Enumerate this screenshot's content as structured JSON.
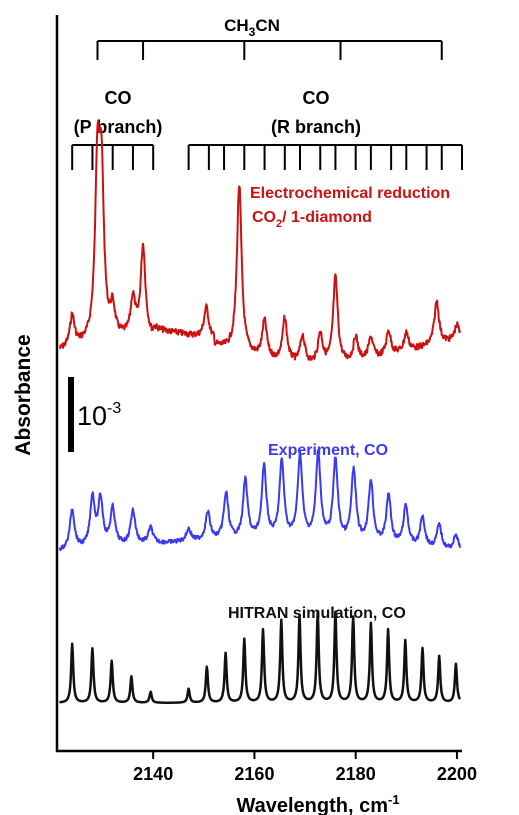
{
  "chart_data": {
    "type": "line",
    "title": "",
    "xlabel": "Wavelength",
    "xlabel_unit": "cm",
    "xlabel_unit_sup": "-1",
    "ylabel": "Absorbance",
    "xlim": [
      2121,
      2201
    ],
    "xticks": [
      2140,
      2160,
      2180,
      2200
    ],
    "x_tick_labels": [
      "2140",
      "2160",
      "2180",
      "2200"
    ],
    "scale_bar": {
      "base": "10",
      "exponent": "-3"
    },
    "annotations": {
      "ch3cn": {
        "label": "CH3CN",
        "label_main": "CH",
        "label_sub": "3",
        "label_rest": "CN",
        "lines": [
          2129,
          2138,
          2158,
          2177,
          2197
        ]
      },
      "co_p": {
        "label_top": "CO",
        "label_bottom": "(P branch)",
        "lines": [
          2124,
          2128,
          2132,
          2136,
          2140
        ]
      },
      "co_r": {
        "label_top": "CO",
        "label_bottom": "(R branch)",
        "lines": [
          2147,
          2151,
          2154,
          2158,
          2162,
          2166,
          2169,
          2173,
          2176,
          2180,
          2183,
          2187,
          2190,
          2194,
          2197,
          2201
        ]
      }
    },
    "series": [
      {
        "label_line1": "Electrochemical reduction",
        "label_line2_main": "CO",
        "label_line2_sub": "2",
        "label_line2_rest": "/ 1-diamond",
        "color": "#cc1111",
        "peaks": [
          {
            "x": 2124.0,
            "h": 1.0
          },
          {
            "x": 2129.0,
            "h": 5.5
          },
          {
            "x": 2129.8,
            "h": 4.8
          },
          {
            "x": 2132.0,
            "h": 0.9
          },
          {
            "x": 2136.0,
            "h": 1.2
          },
          {
            "x": 2138.0,
            "h": 2.9
          },
          {
            "x": 2150.5,
            "h": 1.0
          },
          {
            "x": 2157.0,
            "h": 5.4
          },
          {
            "x": 2162.0,
            "h": 1.2
          },
          {
            "x": 2166.0,
            "h": 1.4
          },
          {
            "x": 2169.5,
            "h": 0.9
          },
          {
            "x": 2173.0,
            "h": 1.0
          },
          {
            "x": 2176.0,
            "h": 2.8
          },
          {
            "x": 2180.0,
            "h": 0.8
          },
          {
            "x": 2183.0,
            "h": 0.7
          },
          {
            "x": 2186.5,
            "h": 0.8
          },
          {
            "x": 2190.0,
            "h": 0.6
          },
          {
            "x": 2196.0,
            "h": 1.4
          },
          {
            "x": 2200.0,
            "h": 0.5
          }
        ]
      },
      {
        "label": "Experiment, CO",
        "color": "#3a3af0",
        "peaks": [
          {
            "x": 2124.0,
            "h": 1.3
          },
          {
            "x": 2128.0,
            "h": 1.6
          },
          {
            "x": 2129.6,
            "h": 1.5
          },
          {
            "x": 2132.0,
            "h": 1.2
          },
          {
            "x": 2136.0,
            "h": 1.1
          },
          {
            "x": 2139.5,
            "h": 0.5
          },
          {
            "x": 2147.0,
            "h": 0.4
          },
          {
            "x": 2150.8,
            "h": 0.9
          },
          {
            "x": 2154.4,
            "h": 1.5
          },
          {
            "x": 2158.2,
            "h": 1.9
          },
          {
            "x": 2161.9,
            "h": 2.3
          },
          {
            "x": 2165.4,
            "h": 2.5
          },
          {
            "x": 2169.0,
            "h": 2.7
          },
          {
            "x": 2172.6,
            "h": 2.8
          },
          {
            "x": 2176.0,
            "h": 2.6
          },
          {
            "x": 2179.6,
            "h": 2.3
          },
          {
            "x": 2183.0,
            "h": 2.0
          },
          {
            "x": 2186.5,
            "h": 1.6
          },
          {
            "x": 2189.9,
            "h": 1.3
          },
          {
            "x": 2193.2,
            "h": 1.0
          },
          {
            "x": 2196.5,
            "h": 0.8
          },
          {
            "x": 2199.8,
            "h": 0.5
          }
        ]
      },
      {
        "label": "HITRAN simulation, CO",
        "color": "#111111",
        "peaks": [
          {
            "x": 2124.0,
            "h": 1.9
          },
          {
            "x": 2128.0,
            "h": 1.75
          },
          {
            "x": 2131.8,
            "h": 1.35
          },
          {
            "x": 2135.7,
            "h": 0.85
          },
          {
            "x": 2139.5,
            "h": 0.35
          },
          {
            "x": 2147.0,
            "h": 0.45
          },
          {
            "x": 2150.6,
            "h": 1.15
          },
          {
            "x": 2154.3,
            "h": 1.6
          },
          {
            "x": 2158.0,
            "h": 2.05
          },
          {
            "x": 2161.7,
            "h": 2.35
          },
          {
            "x": 2165.3,
            "h": 2.65
          },
          {
            "x": 2168.9,
            "h": 2.8
          },
          {
            "x": 2172.5,
            "h": 2.9
          },
          {
            "x": 2176.0,
            "h": 2.9
          },
          {
            "x": 2179.5,
            "h": 2.75
          },
          {
            "x": 2183.0,
            "h": 2.55
          },
          {
            "x": 2186.4,
            "h": 2.35
          },
          {
            "x": 2189.8,
            "h": 2.0
          },
          {
            "x": 2193.2,
            "h": 1.75
          },
          {
            "x": 2196.5,
            "h": 1.5
          },
          {
            "x": 2199.8,
            "h": 1.25
          }
        ]
      }
    ],
    "grid": false,
    "legend": "none"
  }
}
